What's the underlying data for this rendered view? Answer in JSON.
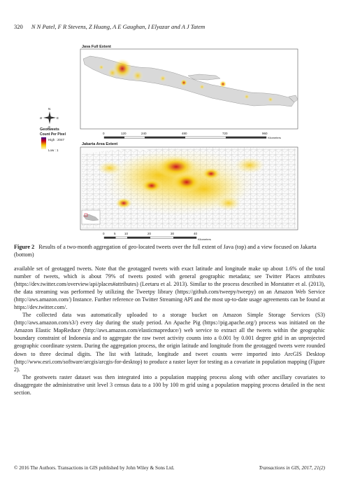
{
  "header": {
    "page_number": "320",
    "authors": "N N Patel, F R Stevens, Z Huang, A E Gaughan, I Elyazar and A J Tatem"
  },
  "figure": {
    "java_title": "Java Full Extent",
    "jakarta_title": "Jakarta Area Extent",
    "legend": {
      "title": "Geotweets",
      "subtitle": "Count Per Pixel",
      "high": "High : 2047",
      "low": "Low : 1"
    },
    "compass": {
      "n": "N",
      "s": "S",
      "e": "E",
      "w": "W"
    },
    "scale_java": {
      "ticks": [
        "0",
        "120",
        "240",
        "480",
        "720",
        "960"
      ],
      "unit": "Kilometers"
    },
    "scale_jakarta": {
      "ticks": [
        "0",
        "5",
        "10",
        "20",
        "30",
        "40"
      ],
      "unit": "Kilometers"
    },
    "colors": {
      "low": "#fff3a8",
      "mid": "#f5c400",
      "high": "#c8001a",
      "peak": "#6a0a7a",
      "land": "#d9d9d9"
    }
  },
  "caption": {
    "label": "Figure 2",
    "text": "Results of a two-month aggregation of geo-located tweets over the full extent of Java (top) and a view focused on Jakarta (bottom)"
  },
  "body": {
    "p1": "available set of geotagged tweets. Note that the geotagged tweets with exact latitude and longitude make up about 1.6% of the total number of tweets, which is about 79% of tweets posted with general geographic metadata; see Twitter Places attributes (https://dev.twitter.com/overview/api/places#attributes) (Leetaru et al. 2013). Similar to the process described in Morstatter et al. (2013), the data streaming was performed by utilizing the Tweetpy library (https://github.com/tweepy/tweepy) on an Amazon Web Service (http://aws.amazon.com/) Instance. Further reference on Twitter Streaming API and the most up-to-date usage agreements can be found at https://dev.twitter.com/.",
    "p2": "The collected data was automatically uploaded to a storage bucket on Amazon Simple Storage Services (S3) (http://aws.amazon.com/s3/) every day during the study period. An Apache Pig (https://pig.apache.org/) process was initiated on the Amazon Elastic MapReduce (http://aws.amazon.com/elasticmapreduce/) web service to extract all the tweets within the geographic boundary constraint of Indonesia and to aggregate the raw tweet activity counts into a 0.001 by 0.001 degree grid in an unprojected geographic coordinate system. During the aggregation process, the origin latitude and longitude from the geotagged tweets were rounded down to three decimal digits. The list with latitude, longitude and tweet counts were imported into ArcGIS Desktop (http://www.esri.com/software/arcgis/arcgis-for-desktop) to produce a raster layer for testing as a covariate in population mapping (Figure 2).",
    "p3": "The geotweets raster dataset was then integrated into a population mapping process along with other ancillary covariates to disaggregate the administrative unit level 3 census data to a 100 by 100 m grid using a population mapping process detailed in the next section."
  },
  "footer": {
    "copyright": "© 2016 The Authors. Transactions in GIS published by John Wiley & Sons Ltd.",
    "journal": "Transactions in GIS, 2017, 21(2)"
  }
}
